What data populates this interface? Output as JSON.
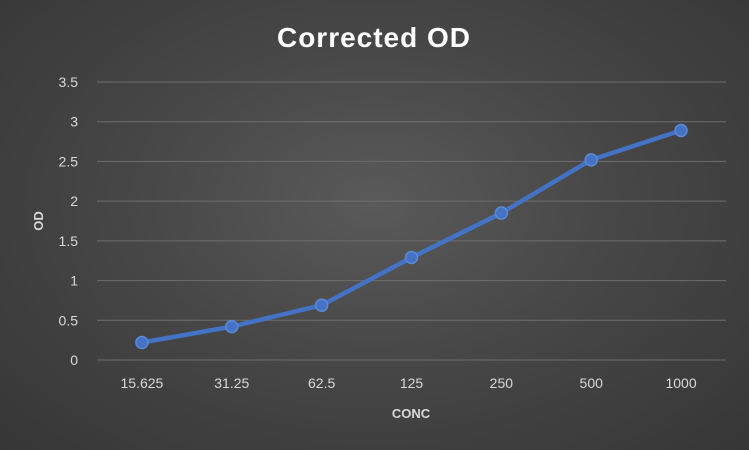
{
  "chart_data": {
    "type": "line",
    "title": "Corrected OD",
    "xlabel": "CONC",
    "ylabel": "OD",
    "categories": [
      "15.625",
      "31.25",
      "62.5",
      "125",
      "250",
      "500",
      "1000"
    ],
    "series": [
      {
        "values": [
          0.22,
          0.42,
          0.69,
          1.29,
          1.85,
          2.52,
          2.89
        ],
        "color": "#4472c4"
      }
    ],
    "ylim": [
      0,
      3.5
    ],
    "yticks": [
      "0",
      "0.5",
      "1",
      "1.5",
      "2",
      "2.5",
      "3",
      "3.5"
    ],
    "grid": true,
    "legend": "none",
    "background": "#474747"
  }
}
